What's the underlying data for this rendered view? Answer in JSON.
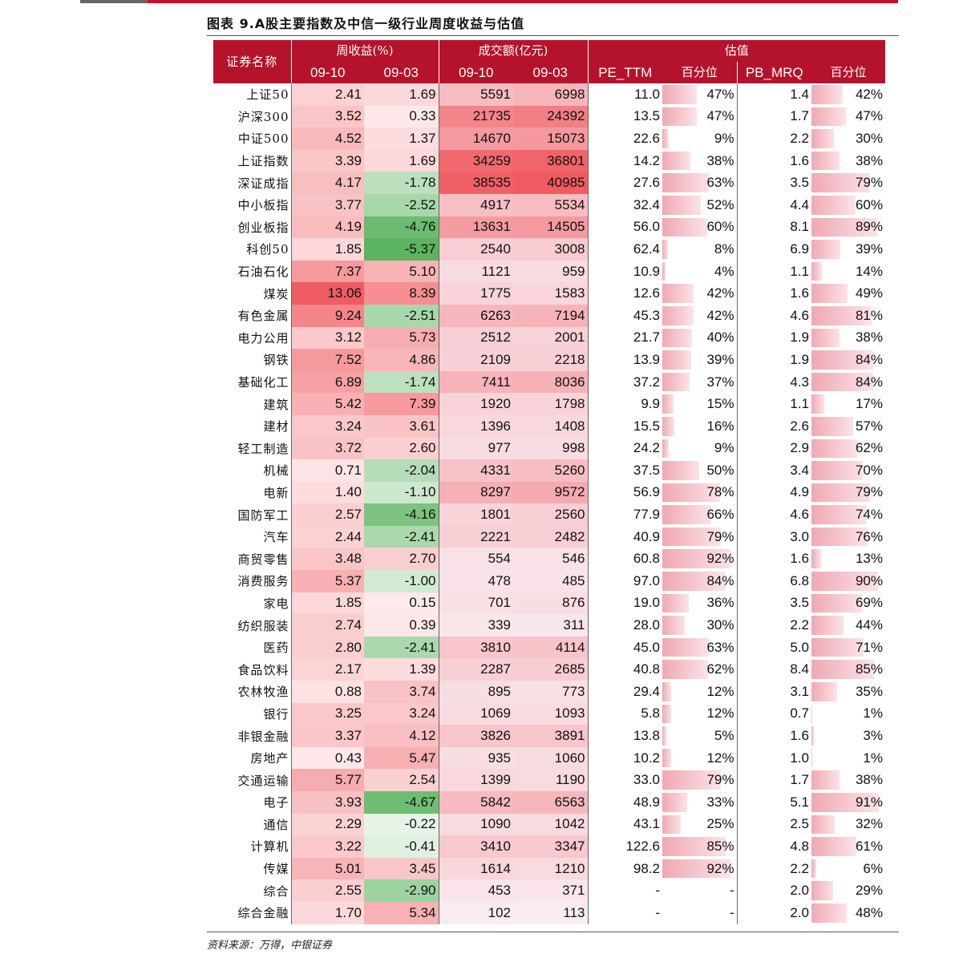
{
  "title": "图表 9.A股主要指数及中信一级行业周度收益与估值",
  "header": {
    "name_col": "证券名称",
    "group_return": "周收益(%)",
    "group_volume": "成交额(亿元)",
    "group_valuation": "估值",
    "ret_d1": "09-10",
    "ret_d2": "09-03",
    "vol_d1": "09-10",
    "vol_d2": "09-03",
    "pe": "PE_TTM",
    "pe_pct": "百分位",
    "pb": "PB_MRQ",
    "pb_pct": "百分位"
  },
  "rows": [
    [
      "上证50",
      "2.41",
      "1.69",
      "5591",
      "6998",
      "11.0",
      "47%",
      "1.4",
      "42%"
    ],
    [
      "沪深300",
      "3.52",
      "0.33",
      "21735",
      "24392",
      "13.5",
      "47%",
      "1.7",
      "47%"
    ],
    [
      "中证500",
      "4.52",
      "1.37",
      "14670",
      "15073",
      "22.6",
      "9%",
      "2.2",
      "30%"
    ],
    [
      "上证指数",
      "3.39",
      "1.69",
      "34259",
      "36801",
      "14.2",
      "38%",
      "1.6",
      "38%"
    ],
    [
      "深证成指",
      "4.17",
      "-1.78",
      "38535",
      "40985",
      "27.6",
      "63%",
      "3.5",
      "79%"
    ],
    [
      "中小板指",
      "3.77",
      "-2.52",
      "4917",
      "5534",
      "32.4",
      "52%",
      "4.4",
      "60%"
    ],
    [
      "创业板指",
      "4.19",
      "-4.76",
      "13631",
      "14505",
      "56.0",
      "60%",
      "8.1",
      "89%"
    ],
    [
      "科创50",
      "1.85",
      "-5.37",
      "2540",
      "3008",
      "62.4",
      "8%",
      "6.9",
      "39%"
    ],
    [
      "石油石化",
      "7.37",
      "5.10",
      "1121",
      "959",
      "10.9",
      "4%",
      "1.1",
      "14%"
    ],
    [
      "煤炭",
      "13.06",
      "8.39",
      "1775",
      "1583",
      "12.6",
      "42%",
      "1.6",
      "49%"
    ],
    [
      "有色金属",
      "9.24",
      "-2.51",
      "6263",
      "7194",
      "45.3",
      "42%",
      "4.6",
      "81%"
    ],
    [
      "电力公用",
      "3.12",
      "5.73",
      "2512",
      "2001",
      "21.7",
      "40%",
      "1.9",
      "38%"
    ],
    [
      "钢铁",
      "7.52",
      "4.86",
      "2109",
      "2218",
      "13.9",
      "39%",
      "1.9",
      "84%"
    ],
    [
      "基础化工",
      "6.89",
      "-1.74",
      "7411",
      "8036",
      "37.2",
      "37%",
      "4.3",
      "84%"
    ],
    [
      "建筑",
      "5.42",
      "7.39",
      "1920",
      "1798",
      "9.9",
      "15%",
      "1.1",
      "17%"
    ],
    [
      "建材",
      "3.24",
      "3.61",
      "1396",
      "1408",
      "15.5",
      "16%",
      "2.6",
      "57%"
    ],
    [
      "轻工制造",
      "3.72",
      "2.60",
      "977",
      "998",
      "24.2",
      "9%",
      "2.9",
      "62%"
    ],
    [
      "机械",
      "0.71",
      "-2.04",
      "4331",
      "5260",
      "37.5",
      "50%",
      "3.4",
      "70%"
    ],
    [
      "电新",
      "1.40",
      "-1.10",
      "8297",
      "9572",
      "56.9",
      "78%",
      "4.9",
      "79%"
    ],
    [
      "国防军工",
      "2.57",
      "-4.16",
      "1801",
      "2560",
      "77.9",
      "66%",
      "4.6",
      "74%"
    ],
    [
      "汽车",
      "2.44",
      "-2.41",
      "2221",
      "2482",
      "40.9",
      "79%",
      "3.0",
      "76%"
    ],
    [
      "商贸零售",
      "3.48",
      "2.70",
      "554",
      "546",
      "60.8",
      "92%",
      "1.6",
      "13%"
    ],
    [
      "消费服务",
      "5.37",
      "-1.00",
      "478",
      "485",
      "97.0",
      "84%",
      "6.8",
      "90%"
    ],
    [
      "家电",
      "1.85",
      "0.15",
      "701",
      "876",
      "19.0",
      "36%",
      "3.5",
      "69%"
    ],
    [
      "纺织服装",
      "2.74",
      "0.39",
      "339",
      "311",
      "28.0",
      "30%",
      "2.2",
      "44%"
    ],
    [
      "医药",
      "2.80",
      "-2.41",
      "3810",
      "4114",
      "45.0",
      "63%",
      "5.0",
      "71%"
    ],
    [
      "食品饮料",
      "2.17",
      "1.39",
      "2287",
      "2685",
      "40.8",
      "62%",
      "8.4",
      "85%"
    ],
    [
      "农林牧渔",
      "0.88",
      "3.74",
      "895",
      "773",
      "29.4",
      "12%",
      "3.1",
      "35%"
    ],
    [
      "银行",
      "3.25",
      "3.24",
      "1069",
      "1093",
      "5.8",
      "12%",
      "0.7",
      "1%"
    ],
    [
      "非银金融",
      "3.37",
      "4.12",
      "3826",
      "3891",
      "13.8",
      "5%",
      "1.6",
      "3%"
    ],
    [
      "房地产",
      "0.43",
      "5.47",
      "935",
      "1060",
      "10.2",
      "12%",
      "1.0",
      "1%"
    ],
    [
      "交通运输",
      "5.77",
      "2.54",
      "1399",
      "1190",
      "33.0",
      "79%",
      "1.7",
      "38%"
    ],
    [
      "电子",
      "3.93",
      "-4.67",
      "5842",
      "6563",
      "48.9",
      "33%",
      "5.1",
      "91%"
    ],
    [
      "通信",
      "2.29",
      "-0.22",
      "1090",
      "1042",
      "43.1",
      "25%",
      "2.5",
      "32%"
    ],
    [
      "计算机",
      "3.22",
      "-0.41",
      "3410",
      "3347",
      "122.6",
      "85%",
      "4.8",
      "61%"
    ],
    [
      "传媒",
      "5.01",
      "3.45",
      "1614",
      "1210",
      "98.2",
      "92%",
      "2.2",
      "6%"
    ],
    [
      "综合",
      "2.55",
      "-2.90",
      "453",
      "371",
      "-",
      "-",
      "2.0",
      "29%"
    ],
    [
      "综合金融",
      "1.70",
      "5.34",
      "102",
      "113",
      "-",
      "-",
      "2.0",
      "48%"
    ]
  ],
  "source": "资料来源：万得，中银证券"
}
